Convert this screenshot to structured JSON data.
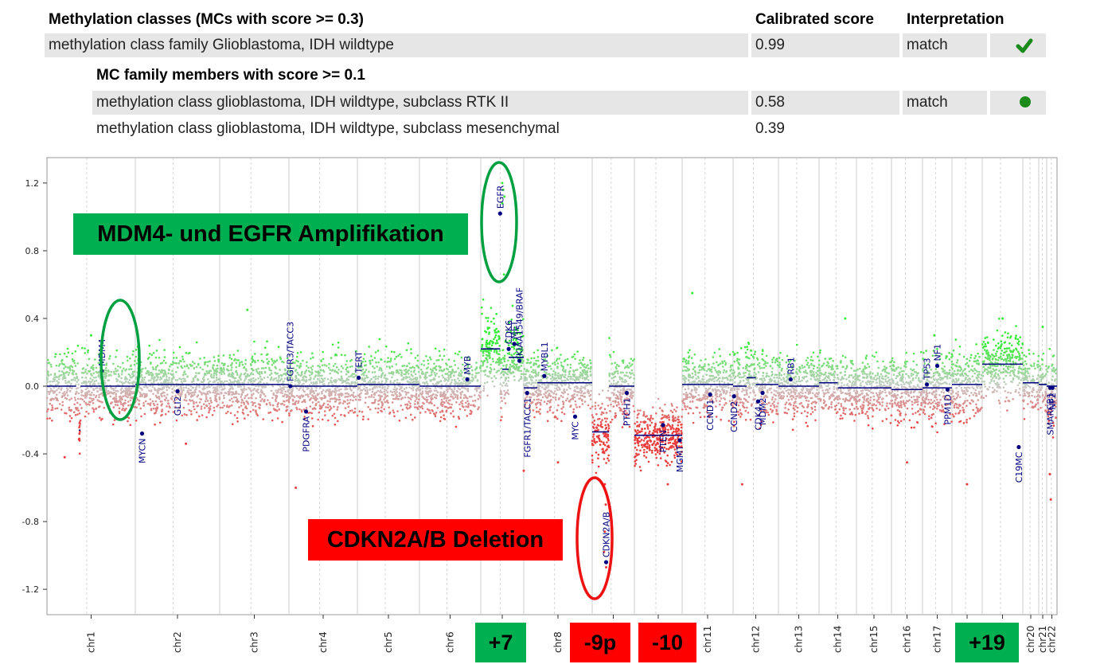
{
  "table": {
    "header": {
      "col1": "Methylation classes (MCs with score >= 0.3)",
      "col2": "Calibrated score",
      "col3": "Interpretation"
    },
    "rows": [
      {
        "label": "methylation class family Glioblastoma, IDH wildtype",
        "score": "0.99",
        "interp": "match",
        "icon": "check-icon",
        "shaded": true
      }
    ],
    "sub_header": "MC family members with score >= 0.1",
    "sub_rows": [
      {
        "label": "methylation class glioblastoma, IDH wildtype, subclass RTK II",
        "score": "0.58",
        "interp": "match",
        "icon": "dot-icon",
        "shaded": true
      },
      {
        "label": "methylation class glioblastoma, IDH wildtype, subclass mesenchymal",
        "score": "0.39",
        "interp": "",
        "icon": "",
        "shaded": false
      }
    ]
  },
  "colors": {
    "gain": "#33dd33",
    "loss": "#dd3333",
    "segment": "#000080",
    "gene": "#000080",
    "check": "#1a8a1a",
    "ellipse_green": "#00a040",
    "ellipse_red": "#ee1111"
  },
  "annotations": {
    "amplification": "MDM4- und EGFR Amplifikation",
    "deletion": "CDKN2A/B Deletion",
    "chr7_gain": "+7",
    "chr9p_loss": "-9p",
    "chr10_loss": "-10",
    "chr19_gain": "+19"
  },
  "chart_data": {
    "type": "scatter",
    "title": "",
    "xlabel": "",
    "ylabel": "",
    "ylim": [
      -1.35,
      1.35
    ],
    "yticks": [
      "1.2",
      "0.8",
      "0.4",
      "0.0",
      "-0.4",
      "-0.8",
      "-1.2"
    ],
    "grid": "vertical chromosome boundaries",
    "chromosomes": [
      {
        "name": "chr1",
        "segments": [
          [
            0,
            0.33,
            0.0
          ],
          [
            0.36,
            0.38,
            -0.26
          ],
          [
            0.38,
            1,
            0.0
          ]
        ],
        "spread": 0.09,
        "outliers": [
          [
            0.2,
            -0.42
          ],
          [
            0.5,
            0.3
          ]
        ]
      },
      {
        "name": "chr2",
        "segments": [
          [
            0,
            1,
            0.01
          ]
        ],
        "spread": 0.09,
        "outliers": [
          [
            0.6,
            -0.34
          ]
        ]
      },
      {
        "name": "chr3",
        "segments": [
          [
            0,
            1,
            0.01
          ]
        ],
        "spread": 0.09,
        "outliers": [
          [
            0.4,
            0.45
          ]
        ]
      },
      {
        "name": "chr4",
        "segments": [
          [
            0,
            1,
            0.0
          ]
        ],
        "spread": 0.09,
        "outliers": [
          [
            0.1,
            -0.6
          ]
        ]
      },
      {
        "name": "chr5",
        "segments": [
          [
            0,
            1,
            0.01
          ]
        ],
        "spread": 0.09,
        "outliers": []
      },
      {
        "name": "chr6",
        "segments": [
          [
            0,
            1,
            0.0
          ]
        ],
        "spread": 0.09,
        "outliers": []
      },
      {
        "name": "chr7",
        "segments": [
          [
            0,
            0.45,
            0.22
          ],
          [
            0.5,
            0.65,
            0.1
          ],
          [
            0.65,
            1,
            0.17
          ]
        ],
        "spread": 0.1,
        "outliers": [
          [
            0.5,
            1.2
          ],
          [
            0.52,
            1.16
          ],
          [
            0.55,
            1.12
          ],
          [
            0.5,
            1.08
          ],
          [
            0.54,
            0.66
          ]
        ]
      },
      {
        "name": "chr8",
        "segments": [
          [
            0,
            0.2,
            -0.01
          ],
          [
            0.2,
            1,
            0.02
          ]
        ],
        "spread": 0.09,
        "outliers": [
          [
            0.0,
            -0.5
          ],
          [
            0.5,
            -0.45
          ]
        ]
      },
      {
        "name": "chr9",
        "segments": [
          [
            0,
            0.4,
            -0.27
          ],
          [
            0.4,
            1,
            0.0
          ]
        ],
        "spread": 0.1,
        "outliers": [
          [
            0.3,
            -0.58
          ],
          [
            0.32,
            -0.7
          ],
          [
            0.3,
            -0.86
          ],
          [
            0.28,
            -0.98
          ],
          [
            0.33,
            -1.07
          ]
        ]
      },
      {
        "name": "chr10",
        "segments": [
          [
            0,
            1,
            -0.29
          ]
        ],
        "spread": 0.08,
        "outliers": [
          [
            0.7,
            -0.58
          ]
        ]
      },
      {
        "name": "chr11",
        "segments": [
          [
            0,
            1,
            0.01
          ]
        ],
        "spread": 0.09,
        "outliers": [
          [
            0.2,
            0.55
          ]
        ]
      },
      {
        "name": "chr12",
        "segments": [
          [
            0,
            0.3,
            0.0
          ],
          [
            0.3,
            0.5,
            0.05
          ],
          [
            0.5,
            1,
            0.01
          ]
        ],
        "spread": 0.1,
        "outliers": [
          [
            0.2,
            -0.58
          ]
        ]
      },
      {
        "name": "chr13",
        "segments": [
          [
            0,
            1,
            0.0
          ]
        ],
        "spread": 0.09,
        "outliers": []
      },
      {
        "name": "chr14",
        "segments": [
          [
            0,
            0.5,
            0.02
          ],
          [
            0.5,
            1,
            -0.01
          ]
        ],
        "spread": 0.09,
        "outliers": [
          [
            0.7,
            0.4
          ]
        ]
      },
      {
        "name": "chr15",
        "segments": [
          [
            0,
            1,
            -0.01
          ]
        ],
        "spread": 0.09,
        "outliers": []
      },
      {
        "name": "chr16",
        "segments": [
          [
            0,
            1,
            -0.02
          ]
        ],
        "spread": 0.1,
        "outliers": [
          [
            0.5,
            -0.45
          ]
        ]
      },
      {
        "name": "chr17",
        "segments": [
          [
            0,
            1,
            -0.01
          ]
        ],
        "spread": 0.1,
        "outliers": [
          [
            0.4,
            0.3
          ]
        ]
      },
      {
        "name": "chr18",
        "segments": [
          [
            0,
            1,
            0.01
          ]
        ],
        "spread": 0.1,
        "outliers": [
          [
            0.5,
            -0.58
          ]
        ]
      },
      {
        "name": "chr19",
        "segments": [
          [
            0,
            1,
            0.13
          ]
        ],
        "spread": 0.1,
        "outliers": [
          [
            0.5,
            0.4
          ]
        ]
      },
      {
        "name": "chr20",
        "segments": [
          [
            0,
            1,
            0.02
          ]
        ],
        "spread": 0.09,
        "outliers": []
      },
      {
        "name": "chr21",
        "segments": [
          [
            0,
            1,
            0.01
          ]
        ],
        "spread": 0.09,
        "outliers": [
          [
            0.5,
            0.35
          ]
        ]
      },
      {
        "name": "chr22",
        "segments": [
          [
            0,
            1,
            0.0
          ]
        ],
        "spread": 0.1,
        "outliers": [
          [
            0.3,
            -0.52
          ],
          [
            0.4,
            -0.67
          ]
        ]
      }
    ],
    "genes": [
      {
        "name": "MDM4",
        "chr": "chr1",
        "pos": 0.62,
        "y": 0.09,
        "side": "up"
      },
      {
        "name": "MYCN",
        "chr": "chr2",
        "pos": 0.08,
        "y": -0.28,
        "side": "down"
      },
      {
        "name": "GLI2",
        "chr": "chr2",
        "pos": 0.5,
        "y": -0.03,
        "side": "down"
      },
      {
        "name": "FGFR3/TACC3",
        "chr": "chr4",
        "pos": 0.02,
        "y": 0.0,
        "side": "up"
      },
      {
        "name": "PDGFRA",
        "chr": "chr4",
        "pos": 0.25,
        "y": -0.15,
        "side": "down"
      },
      {
        "name": "TERT",
        "chr": "chr5",
        "pos": 0.02,
        "y": 0.05,
        "side": "up"
      },
      {
        "name": "MYB",
        "chr": "chr6",
        "pos": 0.78,
        "y": 0.04,
        "side": "up"
      },
      {
        "name": "EGFR",
        "chr": "chr7",
        "pos": 0.45,
        "y": 1.02,
        "side": "up"
      },
      {
        "name": "CDK6",
        "chr": "chr7",
        "pos": 0.65,
        "y": 0.22,
        "side": "up"
      },
      {
        "name": "MET",
        "chr": "chr7",
        "pos": 0.78,
        "y": 0.25,
        "side": "up"
      },
      {
        "name": "KIAA1549/BRAF",
        "chr": "chr7",
        "pos": 0.9,
        "y": 0.15,
        "side": "up"
      },
      {
        "name": "FGFR1/TACC1",
        "chr": "chr8",
        "pos": 0.05,
        "y": -0.04,
        "side": "down"
      },
      {
        "name": "MYBL1",
        "chr": "chr8",
        "pos": 0.3,
        "y": 0.06,
        "side": "up"
      },
      {
        "name": "MYC",
        "chr": "chr8",
        "pos": 0.75,
        "y": -0.18,
        "side": "down"
      },
      {
        "name": "CDKN2A/B",
        "chr": "chr9",
        "pos": 0.33,
        "y": -1.04,
        "side": "up"
      },
      {
        "name": "PTCH1",
        "chr": "chr9",
        "pos": 0.82,
        "y": -0.04,
        "side": "down"
      },
      {
        "name": "PTEN",
        "chr": "chr10",
        "pos": 0.6,
        "y": -0.23,
        "side": "down"
      },
      {
        "name": "MGMT",
        "chr": "chr10",
        "pos": 0.95,
        "y": -0.32,
        "side": "down"
      },
      {
        "name": "CCND1",
        "chr": "chr11",
        "pos": 0.55,
        "y": -0.05,
        "side": "down"
      },
      {
        "name": "CCND2",
        "chr": "chr12",
        "pos": 0.02,
        "y": -0.06,
        "side": "down"
      },
      {
        "name": "CDK4",
        "chr": "chr12",
        "pos": 0.55,
        "y": -0.09,
        "side": "down"
      },
      {
        "name": "MDM2",
        "chr": "chr12",
        "pos": 0.65,
        "y": -0.04,
        "side": "down"
      },
      {
        "name": "RB1",
        "chr": "chr13",
        "pos": 0.3,
        "y": 0.04,
        "side": "up"
      },
      {
        "name": "TP53",
        "chr": "chr17",
        "pos": 0.15,
        "y": 0.01,
        "side": "up"
      },
      {
        "name": "NF1",
        "chr": "chr17",
        "pos": 0.5,
        "y": 0.12,
        "side": "up"
      },
      {
        "name": "PPM1D",
        "chr": "chr17",
        "pos": 0.85,
        "y": -0.02,
        "side": "down"
      },
      {
        "name": "C19MC",
        "chr": "chr19",
        "pos": 0.9,
        "y": -0.36,
        "side": "down"
      },
      {
        "name": "SMARCB1",
        "chr": "chr22",
        "pos": 0.35,
        "y": -0.01,
        "side": "down"
      },
      {
        "name": "NF2",
        "chr": "chr22",
        "pos": 0.55,
        "y": -0.01,
        "side": "down"
      }
    ]
  }
}
